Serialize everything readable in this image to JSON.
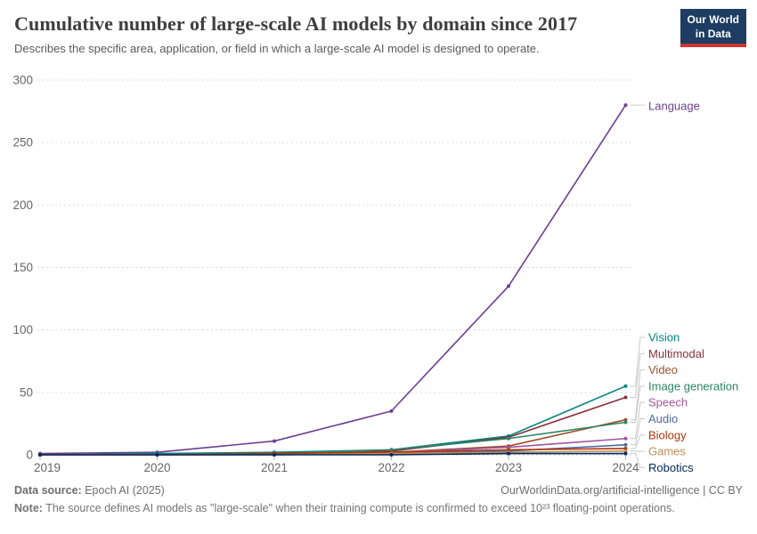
{
  "header": {
    "title": "Cumulative number of large-scale AI models by domain since 2017",
    "subtitle": "Describes the specific area, application, or field in which a large-scale AI model is designed to operate.",
    "logo": {
      "line1": "Our World",
      "line2": "in Data"
    }
  },
  "chart_data": {
    "type": "line",
    "title": "Cumulative number of large-scale AI models by domain since 2017",
    "xlabel": "",
    "ylabel": "",
    "x": [
      2019,
      2020,
      2021,
      2022,
      2023,
      2024
    ],
    "x_tick_labels": [
      "2019",
      "2020",
      "2021",
      "2022",
      "2023",
      "2024"
    ],
    "ylim": [
      0,
      300
    ],
    "yticks": [
      0,
      50,
      100,
      150,
      200,
      250,
      300
    ],
    "grid": true,
    "grid_style": "dashed",
    "legend_position": "right",
    "series": [
      {
        "name": "Language",
        "color": "#6D3E91",
        "values": [
          1,
          2,
          11,
          35,
          135,
          280
        ]
      },
      {
        "name": "Vision",
        "color": "#00847E",
        "values": [
          0,
          1,
          2,
          4,
          15,
          55
        ]
      },
      {
        "name": "Multimodal",
        "color": "#883039",
        "values": [
          0,
          0,
          1,
          3,
          14,
          46
        ]
      },
      {
        "name": "Video",
        "color": "#9A5129",
        "values": [
          0,
          0,
          1,
          2,
          7,
          28
        ]
      },
      {
        "name": "Image generation",
        "color": "#2C8465",
        "values": [
          0,
          0,
          1,
          4,
          13,
          26
        ]
      },
      {
        "name": "Speech",
        "color": "#A2559C",
        "values": [
          0,
          0,
          1,
          2,
          6,
          13
        ]
      },
      {
        "name": "Audio",
        "color": "#4C6A9C",
        "values": [
          0,
          0,
          0,
          1,
          3,
          8
        ]
      },
      {
        "name": "Biology",
        "color": "#B13507",
        "values": [
          0,
          0,
          1,
          2,
          4,
          5
        ]
      },
      {
        "name": "Games",
        "color": "#BC8E5A",
        "values": [
          0,
          0,
          0,
          1,
          2,
          3
        ]
      },
      {
        "name": "Robotics",
        "color": "#00295B",
        "values": [
          0,
          0,
          0,
          0,
          1,
          1
        ]
      }
    ],
    "axis_text_color": "#666666",
    "gridline_color": "#dcdcdc",
    "connector_color": "#c9c9c9"
  },
  "footer": {
    "source_label": "Data source:",
    "source_value": " Epoch AI (2025)",
    "link": "OurWorldinData.org/artificial-intelligence | CC BY",
    "note_label": "Note:",
    "note_value": " The source defines AI models as \"large-scale\" when their training compute is confirmed to exceed 10²³ floating-point operations."
  }
}
